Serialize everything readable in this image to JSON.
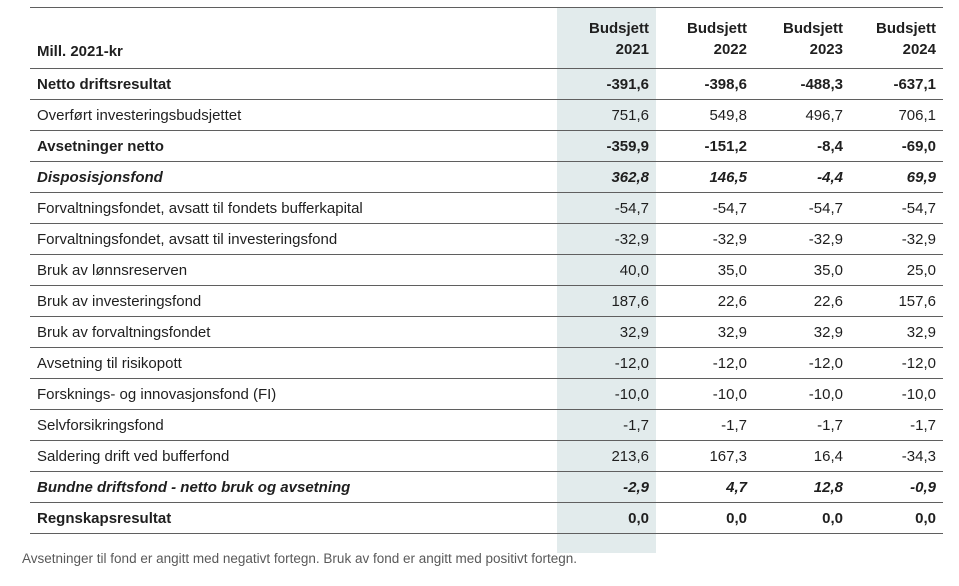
{
  "header": {
    "row_label_header": "Mill. 2021-kr",
    "columns": [
      {
        "line1": "Budsjett",
        "line2": "2021"
      },
      {
        "line1": "Budsjett",
        "line2": "2022"
      },
      {
        "line1": "Budsjett",
        "line2": "2023"
      },
      {
        "line1": "Budsjett",
        "line2": "2024"
      }
    ]
  },
  "table": {
    "rows": [
      {
        "label": "Netto driftsresultat",
        "style": "bold",
        "values": [
          "-391,6",
          "-398,6",
          "-488,3",
          "-637,1"
        ]
      },
      {
        "label": "Overført investeringsbudsjettet",
        "style": "normal",
        "values": [
          "751,6",
          "549,8",
          "496,7",
          "706,1"
        ]
      },
      {
        "label": "Avsetninger netto",
        "style": "bold",
        "values": [
          "-359,9",
          "-151,2",
          "-8,4",
          "-69,0"
        ]
      },
      {
        "label": "Disposisjonsfond",
        "style": "bold-italic",
        "values": [
          "362,8",
          "146,5",
          "-4,4",
          "69,9"
        ]
      },
      {
        "label": "Forvaltningsfondet, avsatt til fondets bufferkapital",
        "style": "normal",
        "values": [
          "-54,7",
          "-54,7",
          "-54,7",
          "-54,7"
        ]
      },
      {
        "label": "Forvaltningsfondet, avsatt til investeringsfond",
        "style": "normal",
        "values": [
          "-32,9",
          "-32,9",
          "-32,9",
          "-32,9"
        ]
      },
      {
        "label": "Bruk av lønnsreserven",
        "style": "normal",
        "values": [
          "40,0",
          "35,0",
          "35,0",
          "25,0"
        ]
      },
      {
        "label": "Bruk av investeringsfond",
        "style": "normal",
        "values": [
          "187,6",
          "22,6",
          "22,6",
          "157,6"
        ]
      },
      {
        "label": "Bruk av forvaltningsfondet",
        "style": "normal",
        "values": [
          "32,9",
          "32,9",
          "32,9",
          "32,9"
        ]
      },
      {
        "label": "Avsetning til risikopott",
        "style": "normal",
        "values": [
          "-12,0",
          "-12,0",
          "-12,0",
          "-12,0"
        ]
      },
      {
        "label": "Forsknings- og innovasjonsfond (FI)",
        "style": "normal",
        "values": [
          "-10,0",
          "-10,0",
          "-10,0",
          "-10,0"
        ]
      },
      {
        "label": "Selvforsikringsfond",
        "style": "normal",
        "values": [
          "-1,7",
          "-1,7",
          "-1,7",
          "-1,7"
        ]
      },
      {
        "label": "Saldering drift ved bufferfond",
        "style": "normal",
        "values": [
          "213,6",
          "167,3",
          "16,4",
          "-34,3"
        ]
      },
      {
        "label": "Bundne driftsfond - netto bruk og avsetning",
        "style": "bold-italic",
        "values": [
          "-2,9",
          "4,7",
          "12,8",
          "-0,9"
        ]
      },
      {
        "label": "Regnskapsresultat",
        "style": "bold",
        "values": [
          "0,0",
          "0,0",
          "0,0",
          "0,0"
        ]
      }
    ]
  },
  "footnote": "Avsetninger til fond er angitt med negativt fortegn. Bruk av fond er angitt med positivt fortegn.",
  "colors": {
    "highlight_column_bg": "#e2ebec",
    "border": "#5f5f5f",
    "text": "#1f1f1f",
    "footnote_text": "#595959"
  }
}
